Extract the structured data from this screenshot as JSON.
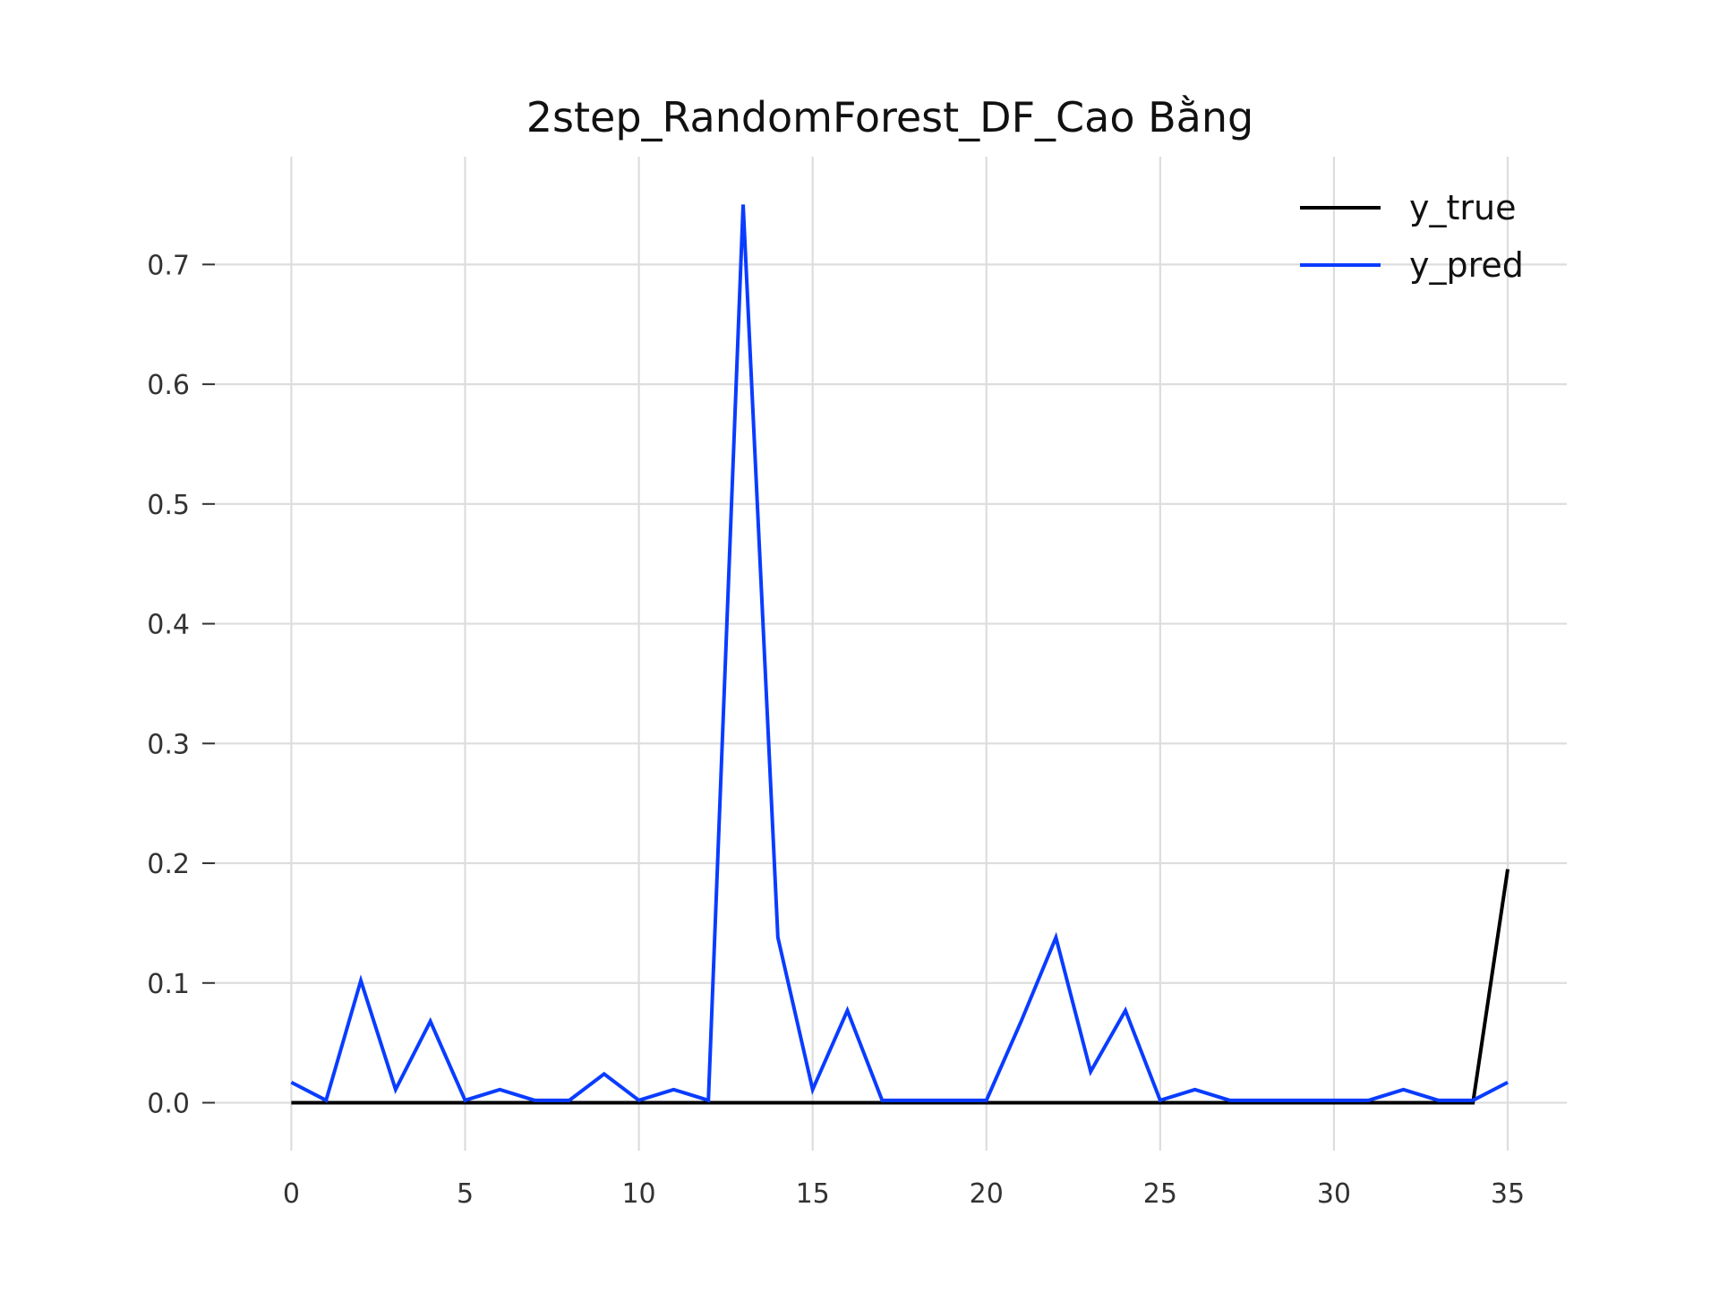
{
  "chart_data": {
    "type": "line",
    "title": "2step_RandomForest_DF_Cao Bằng",
    "xlabel": "",
    "ylabel": "",
    "x": [
      0,
      1,
      2,
      3,
      4,
      5,
      6,
      7,
      8,
      9,
      10,
      11,
      12,
      13,
      14,
      15,
      16,
      17,
      18,
      19,
      20,
      21,
      22,
      23,
      24,
      25,
      26,
      27,
      28,
      29,
      30,
      31,
      32,
      33,
      34,
      35
    ],
    "xlim": [
      -2.2,
      36.7
    ],
    "ylim": [
      -0.04,
      0.79
    ],
    "x_ticks": [
      0,
      5,
      10,
      15,
      20,
      25,
      30,
      35
    ],
    "x_tick_labels": [
      "0",
      "5",
      "10",
      "15",
      "20",
      "25",
      "30",
      "35"
    ],
    "y_ticks": [
      0.0,
      0.1,
      0.2,
      0.3,
      0.4,
      0.5,
      0.6,
      0.7
    ],
    "y_tick_labels": [
      "0.0",
      "0.1",
      "0.2",
      "0.3",
      "0.4",
      "0.5",
      "0.6",
      "0.7"
    ],
    "grid": true,
    "legend_position": "top-right",
    "series": [
      {
        "name": "y_true",
        "color": "#000000",
        "values": [
          0,
          0,
          0,
          0,
          0,
          0,
          0,
          0,
          0,
          0,
          0,
          0,
          0,
          0,
          0,
          0,
          0,
          0,
          0,
          0,
          0,
          0,
          0,
          0,
          0,
          0,
          0,
          0,
          0,
          0,
          0,
          0,
          0,
          0,
          0,
          0.195
        ]
      },
      {
        "name": "y_pred",
        "color": "#0a3cff",
        "values": [
          0.017,
          0.002,
          0.102,
          0.011,
          0.068,
          0.002,
          0.011,
          0.002,
          0.002,
          0.024,
          0.002,
          0.011,
          0.002,
          0.75,
          0.138,
          0.011,
          0.077,
          0.002,
          0.002,
          0.002,
          0.002,
          0.068,
          0.138,
          0.026,
          0.077,
          0.002,
          0.011,
          0.002,
          0.002,
          0.002,
          0.002,
          0.002,
          0.011,
          0.002,
          0.002,
          0.017
        ]
      }
    ]
  }
}
